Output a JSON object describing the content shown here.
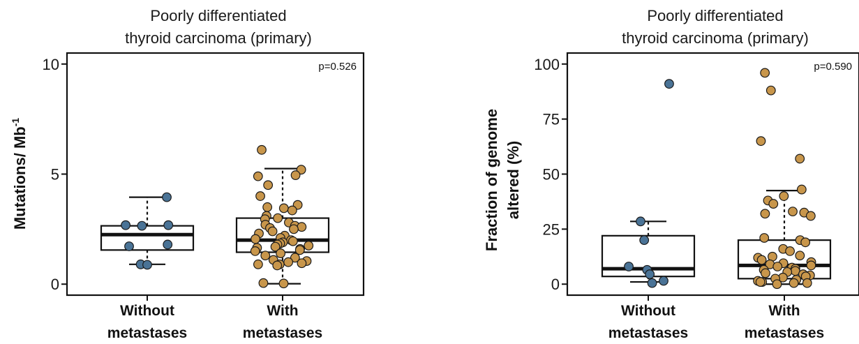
{
  "colors": {
    "without": "#4a7396",
    "with": "#c8964b",
    "outline": "#1a1a1a"
  },
  "chart_data": [
    {
      "type": "box",
      "title": [
        "Poorly differentiated",
        "thyroid carcinoma (primary)"
      ],
      "ylabel": "Mutations/ Mb",
      "ylabel_sup": "-1",
      "ylim": [
        -0.5,
        10.5
      ],
      "yticks": [
        {
          "v": 0,
          "label": "0"
        },
        {
          "v": 5,
          "label": "5"
        },
        {
          "v": 10,
          "label": "10"
        }
      ],
      "pvalue": "p=0.526",
      "groups": [
        {
          "name": "Without metastases",
          "label_lines": [
            "Without",
            "metastases"
          ],
          "color_key": "without",
          "box": {
            "q1": 1.55,
            "median": 2.25,
            "q3": 2.65,
            "whisker_low": 0.9,
            "whisker_high": 3.95
          },
          "points": [
            3.95,
            2.68,
            2.68,
            2.65,
            1.8,
            1.72,
            0.9,
            0.88
          ]
        },
        {
          "name": "With metastases",
          "label_lines": [
            "With",
            "metastases"
          ],
          "color_key": "with",
          "box": {
            "q1": 1.45,
            "median": 2.0,
            "q3": 3.0,
            "whisker_low": 0.02,
            "whisker_high": 5.25
          },
          "points": [
            6.1,
            5.2,
            4.95,
            4.9,
            4.5,
            4.0,
            3.6,
            3.5,
            3.45,
            3.35,
            3.1,
            3.0,
            2.95,
            2.8,
            2.7,
            2.65,
            2.6,
            2.55,
            2.5,
            2.4,
            2.3,
            2.2,
            2.1,
            2.05,
            2.0,
            1.95,
            1.9,
            1.85,
            1.8,
            1.75,
            1.7,
            1.65,
            1.6,
            1.55,
            1.5,
            1.4,
            1.3,
            1.2,
            1.1,
            1.05,
            1.0,
            0.95,
            0.9,
            0.9,
            0.85,
            0.05,
            0.03
          ]
        }
      ]
    },
    {
      "type": "box",
      "title": [
        "Poorly differentiated",
        "thyroid carcinoma (primary)"
      ],
      "ylabel_lines": [
        "Fraction of genome",
        "altered (%)"
      ],
      "ylim": [
        -5,
        105
      ],
      "yticks": [
        {
          "v": 0,
          "label": "0"
        },
        {
          "v": 25,
          "label": "25"
        },
        {
          "v": 50,
          "label": "50"
        },
        {
          "v": 75,
          "label": "75"
        },
        {
          "v": 100,
          "label": "100"
        }
      ],
      "pvalue": "p=0.590",
      "groups": [
        {
          "name": "Without metastases",
          "label_lines": [
            "Without",
            "metastases"
          ],
          "color_key": "without",
          "box": {
            "q1": 3.5,
            "median": 7.0,
            "q3": 22.0,
            "whisker_low": 1.0,
            "whisker_high": 28.5
          },
          "points": [
            91.0,
            28.5,
            20.0,
            8.0,
            6.5,
            4.5,
            1.5,
            0.5
          ]
        },
        {
          "name": "With metastases",
          "label_lines": [
            "With",
            "metastases"
          ],
          "color_key": "with",
          "box": {
            "q1": 2.5,
            "median": 8.5,
            "q3": 20.0,
            "whisker_low": 0.0,
            "whisker_high": 42.5
          },
          "points": [
            96.0,
            88.0,
            65.0,
            57.0,
            43.0,
            40.0,
            38.0,
            36.5,
            33.0,
            32.5,
            32.0,
            31.0,
            21.0,
            20.0,
            19.0,
            16.0,
            15.0,
            13.0,
            12.5,
            12.0,
            11.0,
            10.0,
            9.5,
            9.0,
            8.5,
            8.0,
            7.5,
            7.0,
            6.5,
            6.0,
            5.5,
            5.0,
            4.5,
            4.0,
            3.5,
            3.0,
            2.5,
            2.0,
            1.5,
            1.0,
            1.0,
            0.5,
            0.5,
            0.0
          ]
        }
      ]
    }
  ]
}
